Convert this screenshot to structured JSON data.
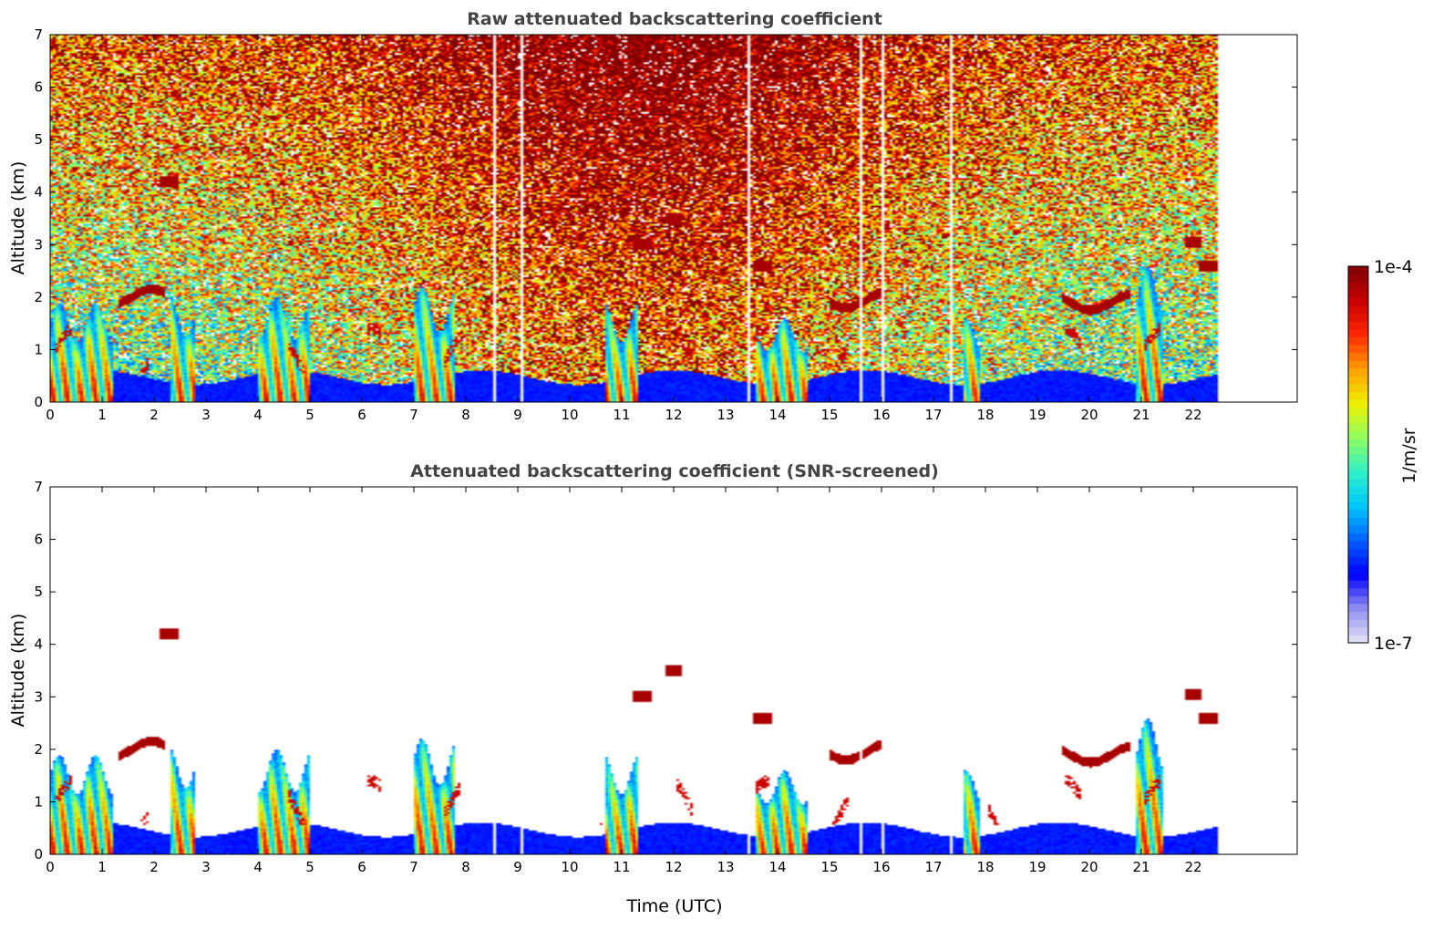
{
  "chart_data": [
    {
      "type": "heatmap",
      "title": "Raw attenuated backscattering coefficient",
      "xlabel": "",
      "ylabel": "Altitude (km)",
      "xlim": [
        0,
        24
      ],
      "ylim": [
        0,
        7
      ],
      "x_ticks": [
        0,
        1,
        2,
        3,
        4,
        5,
        6,
        7,
        8,
        9,
        10,
        11,
        12,
        13,
        14,
        15,
        16,
        17,
        18,
        19,
        20,
        21,
        22
      ],
      "y_ticks": [
        0,
        1,
        2,
        3,
        4,
        5,
        6,
        7
      ],
      "data_end_hour": 22.45,
      "screened": false,
      "features": [
        {
          "kind": "boundary_layer",
          "t0": 0.0,
          "t1": 22.45,
          "top_km": 0.55
        },
        {
          "kind": "dense_low_cloud",
          "t0": 0.0,
          "t1": 1.2,
          "top_km": 1.9
        },
        {
          "kind": "dense_low_cloud",
          "t0": 2.3,
          "t1": 2.8,
          "top_km": 2.1
        },
        {
          "kind": "dense_low_cloud",
          "t0": 4.0,
          "t1": 5.0,
          "top_km": 2.0
        },
        {
          "kind": "dense_low_cloud",
          "t0": 7.0,
          "t1": 7.8,
          "top_km": 2.2
        },
        {
          "kind": "dense_low_cloud",
          "t0": 10.7,
          "t1": 11.3,
          "top_km": 1.9
        },
        {
          "kind": "dense_low_cloud",
          "t0": 13.6,
          "t1": 14.6,
          "top_km": 1.6
        },
        {
          "kind": "dense_low_cloud",
          "t0": 17.6,
          "t1": 17.9,
          "top_km": 1.6
        },
        {
          "kind": "dense_low_cloud",
          "t0": 20.9,
          "t1": 21.4,
          "top_km": 2.6
        },
        {
          "kind": "cloud_layer",
          "t0": 1.3,
          "t1": 2.2,
          "alt_km": 2.0
        },
        {
          "kind": "cloud_layer",
          "t0": 15.0,
          "t1": 16.0,
          "alt_km": 1.95
        },
        {
          "kind": "cloud_layer",
          "t0": 19.5,
          "t1": 20.8,
          "alt_km": 1.9
        },
        {
          "kind": "cloud_patch",
          "t": 2.3,
          "alt_km": 4.2
        },
        {
          "kind": "cloud_patch",
          "t": 11.4,
          "alt_km": 3.0
        },
        {
          "kind": "cloud_patch",
          "t": 12.0,
          "alt_km": 3.5
        },
        {
          "kind": "cloud_patch",
          "t": 13.7,
          "alt_km": 2.6
        },
        {
          "kind": "cloud_patch",
          "t": 22.0,
          "alt_km": 3.05
        },
        {
          "kind": "cloud_patch",
          "t": 22.3,
          "alt_km": 2.6
        }
      ]
    },
    {
      "type": "heatmap",
      "title": "Attenuated backscattering coefficient (SNR-screened)",
      "xlabel": "Time (UTC)",
      "ylabel": "Altitude (km)",
      "xlim": [
        0,
        24
      ],
      "ylim": [
        0,
        7
      ],
      "x_ticks": [
        0,
        1,
        2,
        3,
        4,
        5,
        6,
        7,
        8,
        9,
        10,
        11,
        12,
        13,
        14,
        15,
        16,
        17,
        18,
        19,
        20,
        21,
        22
      ],
      "y_ticks": [
        0,
        1,
        2,
        3,
        4,
        5,
        6,
        7
      ],
      "data_end_hour": 22.45,
      "screened": true
    }
  ],
  "colorbar": {
    "label": "1/m/sr",
    "min_label": "1e-7",
    "max_label": "1e-4",
    "scale": "log",
    "min": 1e-07,
    "max": 0.0001,
    "colormap": [
      "#e6e6f5",
      "#8f8ff0",
      "#0000ff",
      "#0060ff",
      "#00c8ff",
      "#30f0c8",
      "#90ff60",
      "#f0f000",
      "#ffa000",
      "#ff2800",
      "#c80000",
      "#800000"
    ]
  }
}
